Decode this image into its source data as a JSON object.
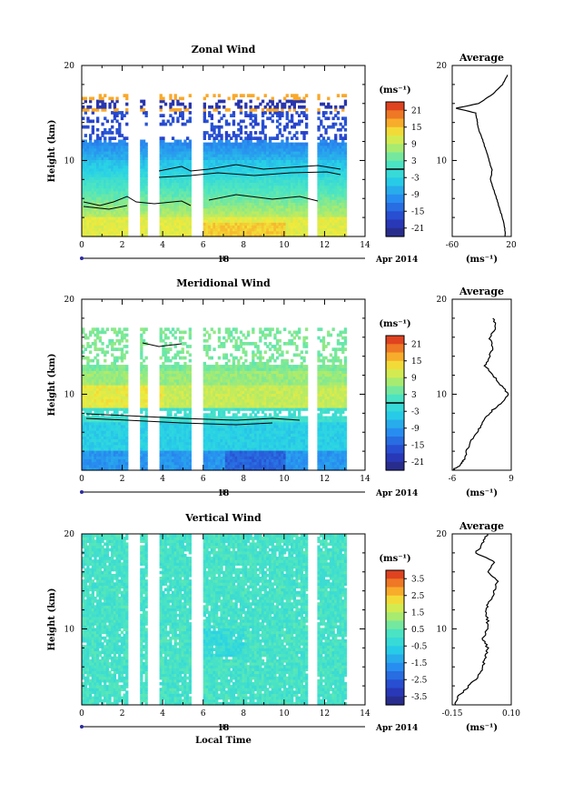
{
  "chart_data": [
    {
      "type": "heatmap",
      "title": "Zonal Wind",
      "ylabel": "Height (km)",
      "x_date_label": "Apr 2014",
      "x_day_label": "18",
      "xlim": [
        0,
        14
      ],
      "ylim": [
        2,
        20
      ],
      "xticks": [
        "0",
        "2",
        "4",
        "6",
        "8",
        "10",
        "12",
        "14"
      ],
      "yticks": [
        "10",
        "20"
      ],
      "colorbar": {
        "unit": "(ms⁻¹)",
        "range": [
          -24,
          24
        ],
        "tick_labels": [
          "21",
          "15",
          "9",
          "3",
          "-3",
          "-9",
          "-15",
          "-21"
        ],
        "contour_at": 0
      },
      "data_gaps_hours": [
        [
          2.3,
          2.9
        ],
        [
          3.2,
          3.8
        ],
        [
          5.4,
          6.0
        ],
        [
          11.2,
          11.6
        ]
      ],
      "average_profile": {
        "title": "Average",
        "xlabel": "(ms⁻¹)",
        "xlim": [
          -60,
          20
        ],
        "xtick_labels": [
          "-60",
          "20"
        ],
        "ytick_labels": [
          "10",
          "20"
        ],
        "height_km": [
          2,
          3,
          4,
          5,
          6,
          7,
          8,
          9,
          10,
          11,
          12,
          13,
          14,
          15,
          15.5,
          16,
          17,
          18,
          19
        ],
        "value": [
          12,
          11,
          8,
          4,
          0,
          -4,
          -8,
          -6,
          -10,
          -14,
          -18,
          -23,
          -26,
          -28,
          -55,
          -24,
          -5,
          8,
          15
        ]
      }
    },
    {
      "type": "heatmap",
      "title": "Meridional Wind",
      "ylabel": "Height (km)",
      "x_date_label": "Apr 2014",
      "x_day_label": "18",
      "xlim": [
        0,
        14
      ],
      "ylim": [
        2,
        20
      ],
      "xticks": [
        "0",
        "2",
        "4",
        "6",
        "8",
        "10",
        "12",
        "14"
      ],
      "yticks": [
        "10",
        "20"
      ],
      "colorbar": {
        "unit": "(ms⁻¹)",
        "range": [
          -24,
          24
        ],
        "tick_labels": [
          "21",
          "15",
          "9",
          "3",
          "-3",
          "-9",
          "-15",
          "-21"
        ],
        "contour_at": 0
      },
      "data_gaps_hours": [
        [
          2.3,
          2.9
        ],
        [
          3.2,
          3.8
        ],
        [
          5.4,
          6.0
        ],
        [
          11.2,
          11.6
        ]
      ],
      "average_profile": {
        "title": "Average",
        "xlabel": "(ms⁻¹)",
        "xlim": [
          -6,
          10
        ],
        "xtick_labels": [
          "-6",
          "9"
        ],
        "ytick_labels": [
          "10",
          "20"
        ],
        "height_km": [
          2,
          2.5,
          3,
          4,
          5,
          6,
          7,
          8,
          9,
          10,
          11,
          12,
          13,
          14,
          15,
          16,
          17,
          18
        ],
        "value": [
          -6,
          -4,
          -3,
          -2,
          -1,
          1,
          2,
          4,
          7,
          9.5,
          7,
          5,
          3,
          4,
          5,
          4,
          6,
          5
        ]
      }
    },
    {
      "type": "heatmap",
      "title": "Vertical Wind",
      "ylabel": "Height (km)",
      "xlabel": "Local Time",
      "x_date_label": "Apr 2014",
      "x_day_label": "18",
      "xlim": [
        0,
        14
      ],
      "ylim": [
        2,
        20
      ],
      "xticks": [
        "0",
        "2",
        "4",
        "6",
        "8",
        "10",
        "12",
        "14"
      ],
      "yticks": [
        "10",
        "20"
      ],
      "colorbar": {
        "unit": "(ms⁻¹)",
        "range": [
          -4,
          4
        ],
        "tick_labels": [
          "3.5",
          "2.5",
          "1.5",
          "0.5",
          "-0.5",
          "-1.5",
          "-2.5",
          "-3.5"
        ]
      },
      "data_gaps_hours": [
        [
          2.3,
          2.9
        ],
        [
          3.2,
          3.8
        ],
        [
          5.4,
          6.0
        ],
        [
          11.2,
          11.6
        ]
      ],
      "average_profile": {
        "title": "Average",
        "xlabel": "(ms⁻¹)",
        "xlim": [
          -0.15,
          0.1
        ],
        "xtick_labels": [
          "-0.15",
          "0.10"
        ],
        "ytick_labels": [
          "10",
          "20"
        ],
        "height_km": [
          2,
          3,
          4,
          5,
          6,
          7,
          8,
          9,
          10,
          11,
          12,
          13,
          14,
          15,
          16,
          17,
          18,
          19,
          20
        ],
        "value": [
          -0.14,
          -0.12,
          -0.08,
          -0.04,
          -0.02,
          -0.01,
          0.0,
          -0.02,
          0.0,
          0.0,
          -0.01,
          0.01,
          0.03,
          0.04,
          0.0,
          0.03,
          -0.05,
          -0.02,
          0.0
        ]
      }
    }
  ]
}
